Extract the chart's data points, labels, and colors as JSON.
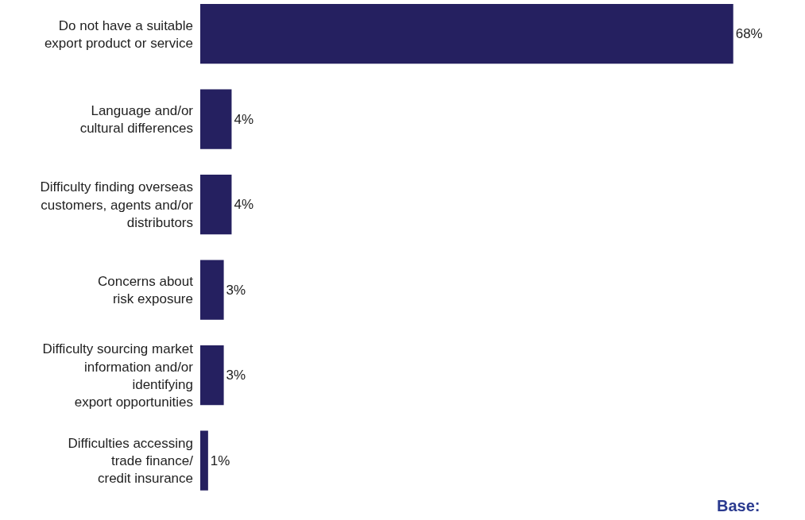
{
  "chart_data": {
    "type": "bar",
    "orientation": "horizontal",
    "categories": [
      "Do not have a suitable\nexport product or service",
      "Language and/or\ncultural differences",
      "Difficulty finding overseas\ncustomers, agents and/or\ndistributors",
      "Concerns about\nrisk exposure",
      "Difficulty sourcing market\ninformation and/or\nidentifying\nexport opportunities",
      "Difficulties accessing\ntrade finance/\ncredit insurance"
    ],
    "values": [
      68,
      4,
      4,
      3,
      3,
      1
    ],
    "color": "#252060",
    "value_labels": [
      "68%",
      "4%",
      "4%",
      "3%",
      "3%",
      "1%"
    ],
    "grid": false,
    "annotations": [
      "Base:"
    ]
  }
}
